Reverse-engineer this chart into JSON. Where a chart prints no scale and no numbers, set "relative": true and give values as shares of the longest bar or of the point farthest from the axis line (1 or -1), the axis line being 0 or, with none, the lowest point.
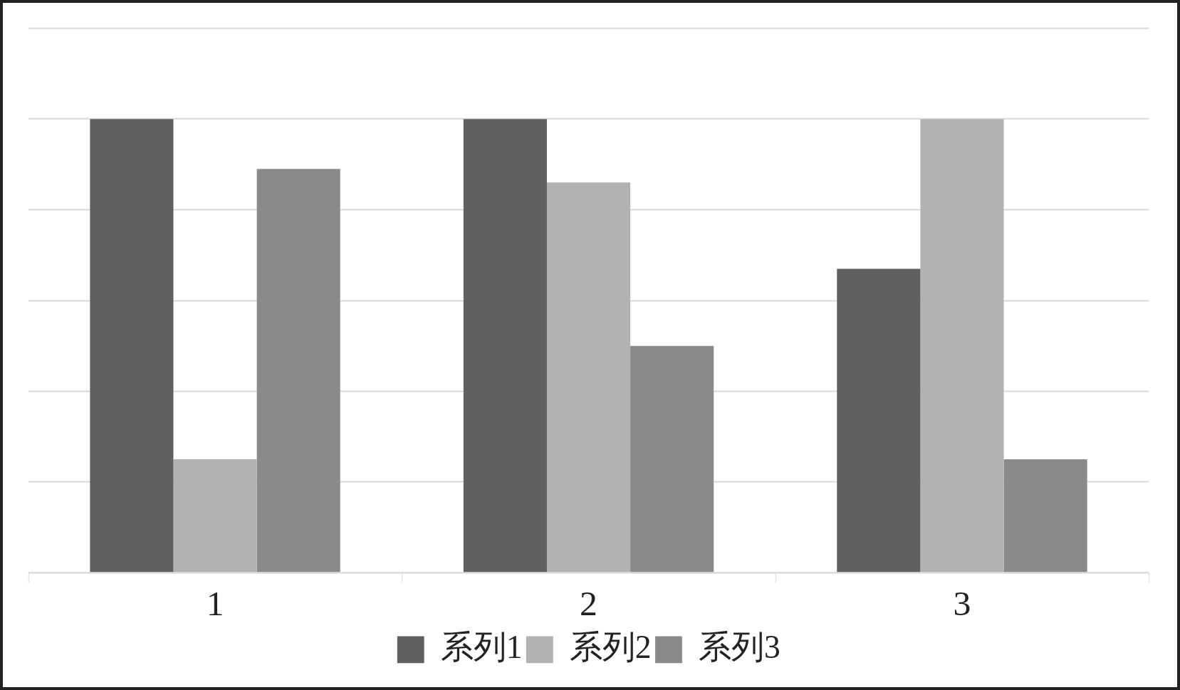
{
  "chart_data": {
    "type": "bar",
    "relative": true,
    "categories": [
      "1",
      "2",
      "3"
    ],
    "series": [
      {
        "name": "系列1",
        "color": "#606060",
        "values": [
          1,
          1,
          0.67
        ]
      },
      {
        "name": "系列2",
        "color": "#b2b2b2",
        "values": [
          0.25,
          0.86,
          1
        ]
      },
      {
        "name": "系列3",
        "color": "#8a8a8a",
        "values": [
          0.89,
          0.5,
          0.25
        ]
      }
    ],
    "grid": "y",
    "legend": "bottom"
  }
}
